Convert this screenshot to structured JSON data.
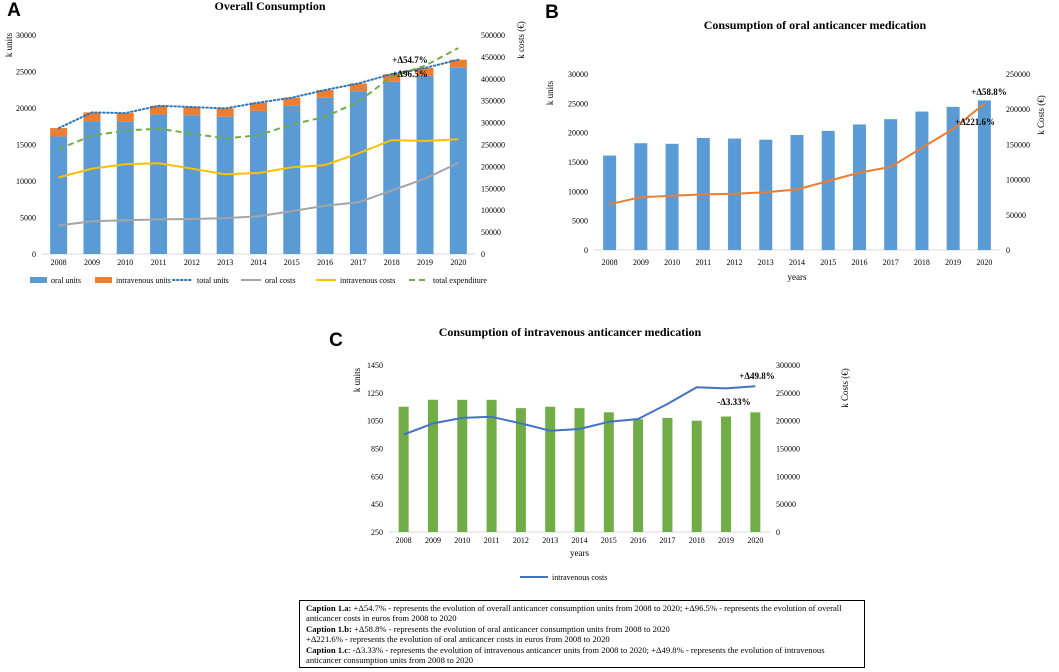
{
  "panel_letters": [
    "A",
    "B",
    "C"
  ],
  "chart_data": [
    {
      "type": "bar",
      "panel": "A",
      "title": "Overall Consumption",
      "categories": [
        "2008",
        "2009",
        "2010",
        "2011",
        "2012",
        "2013",
        "2014",
        "2015",
        "2016",
        "2017",
        "2018",
        "2019",
        "2020"
      ],
      "ylabel": "k units",
      "y2label": "k costs (€)",
      "ylim": [
        0,
        30000
      ],
      "y2lim": [
        0,
        500000
      ],
      "yticks": [
        "0",
        "5000",
        "10000",
        "15000",
        "20000",
        "25000",
        "30000"
      ],
      "y2ticks": [
        "0",
        "50000",
        "100000",
        "150000",
        "200000",
        "250000",
        "300000",
        "350000",
        "400000",
        "450000",
        "500000"
      ],
      "bar_series": [
        {
          "name": "oral units",
          "color": "#5b9bd5",
          "values": [
            16100,
            18200,
            18100,
            19100,
            19000,
            18800,
            19600,
            20300,
            21400,
            22300,
            23600,
            24400,
            25500
          ]
        },
        {
          "name": "intravenous units",
          "color": "#ed7d31",
          "values": [
            1150,
            1200,
            1200,
            1200,
            1140,
            1150,
            1140,
            1110,
            1060,
            1070,
            1050,
            1080,
            1110
          ]
        }
      ],
      "line_series": [
        {
          "name": "total units",
          "axis": "left",
          "style": "dotted",
          "color": "#2e75b6",
          "values": [
            17250,
            19400,
            19300,
            20300,
            20140,
            19950,
            20740,
            21410,
            22460,
            23370,
            24650,
            25480,
            26610
          ]
        },
        {
          "name": "oral costs",
          "axis": "right",
          "style": "solid",
          "color": "#a5a5a5",
          "values": [
            65000,
            75000,
            77000,
            79000,
            80000,
            82000,
            86000,
            98000,
            110000,
            118000,
            145000,
            172000,
            208000
          ]
        },
        {
          "name": "intravenous costs",
          "axis": "right",
          "style": "solid",
          "color": "#ffc000",
          "values": [
            175000,
            195000,
            205000,
            207000,
            195000,
            182000,
            185000,
            198000,
            203000,
            230000,
            260000,
            258000,
            262000
          ]
        },
        {
          "name": "total expenditure",
          "axis": "right",
          "style": "dashed",
          "color": "#70ad47",
          "values": [
            240000,
            270000,
            282000,
            286000,
            275000,
            264000,
            271000,
            296000,
            313000,
            348000,
            405000,
            430000,
            470000
          ]
        }
      ],
      "annotations": [
        "+Δ54.7%",
        "+Δ96.5%"
      ]
    },
    {
      "type": "bar",
      "panel": "B",
      "title": "Consumption of oral anticancer medication",
      "categories": [
        "2008",
        "2009",
        "2010",
        "2011",
        "2012",
        "2013",
        "2014",
        "2015",
        "2016",
        "2017",
        "2018",
        "2019",
        "2020"
      ],
      "xlabel": "years",
      "ylabel": "k units",
      "y2label": "k Costs (€)",
      "ylim": [
        0,
        30000
      ],
      "y2lim": [
        0,
        250000
      ],
      "yticks": [
        "0",
        "5000",
        "10000",
        "15000",
        "20000",
        "25000",
        "30000"
      ],
      "y2ticks": [
        "0",
        "50000",
        "100000",
        "150000",
        "200000",
        "250000"
      ],
      "bar_series": [
        {
          "name": "oral units",
          "color": "#5b9bd5",
          "values": [
            16100,
            18200,
            18100,
            19100,
            19000,
            18800,
            19600,
            20300,
            21400,
            22300,
            23600,
            24400,
            25500
          ]
        }
      ],
      "line_series": [
        {
          "name": "oral costs",
          "axis": "right",
          "style": "solid",
          "color": "#ed7d31",
          "values": [
            65000,
            75000,
            77000,
            79000,
            80000,
            82000,
            86000,
            98000,
            110000,
            118000,
            145000,
            172000,
            208000
          ]
        }
      ],
      "annotations": [
        "+Δ58.8%",
        "+Δ221.6%"
      ]
    },
    {
      "type": "bar",
      "panel": "C",
      "title": "Consumption of intravenous anticancer medication",
      "categories": [
        "2008",
        "2009",
        "2010",
        "2011",
        "2012",
        "2013",
        "2014",
        "2015",
        "2016",
        "2017",
        "2018",
        "2019",
        "2020"
      ],
      "xlabel": "years",
      "ylabel": "k units",
      "y2label": "k Costs (€)",
      "ylim": [
        250,
        1450
      ],
      "y2lim": [
        0,
        300000
      ],
      "yticks": [
        "250",
        "450",
        "650",
        "850",
        "1050",
        "1250",
        "1450"
      ],
      "y2ticks": [
        "0",
        "50000",
        "100000",
        "150000",
        "200000",
        "250000",
        "300000"
      ],
      "bar_series": [
        {
          "name": "intravenous units",
          "color": "#70ad47",
          "values": [
            1150,
            1200,
            1200,
            1200,
            1140,
            1150,
            1140,
            1110,
            1060,
            1070,
            1050,
            1080,
            1110
          ]
        }
      ],
      "line_series": [
        {
          "name": "intravenous costs",
          "axis": "right",
          "style": "solid",
          "color": "#4472c4",
          "values": [
            175000,
            195000,
            205000,
            207000,
            195000,
            182000,
            185000,
            198000,
            203000,
            230000,
            260000,
            258000,
            262000
          ]
        }
      ],
      "legend": [
        "intravenous costs"
      ],
      "annotations": [
        "+Δ49.8%",
        "-Δ3.33%"
      ]
    }
  ],
  "captions": {
    "a_label": "Caption 1.a:",
    "a_text": " +Δ54.7% - represents the evolution of overall anticancer consumption units from 2008 to 2020; +Δ96.5% - represents the evolution of overall anticancer costs in euros from 2008 to 2020",
    "b_label": "Caption 1.b:",
    "b_text1": " +Δ58.8% - represents the evolution of oral anticancer consumption units from 2008 to 2020",
    "b_text2": "+Δ221.6% - represents the evolution of oral anticancer costs in euros from 2008 to 2020",
    "c_label": "Caption 1.c",
    "c_text": ": -Δ3.33% - represents the evolution of intravenous anticancer units from 2008 to 2020; +Δ49.8% - represents the evolution of intravenous anticancer consumption units from 2008 to 2020"
  }
}
